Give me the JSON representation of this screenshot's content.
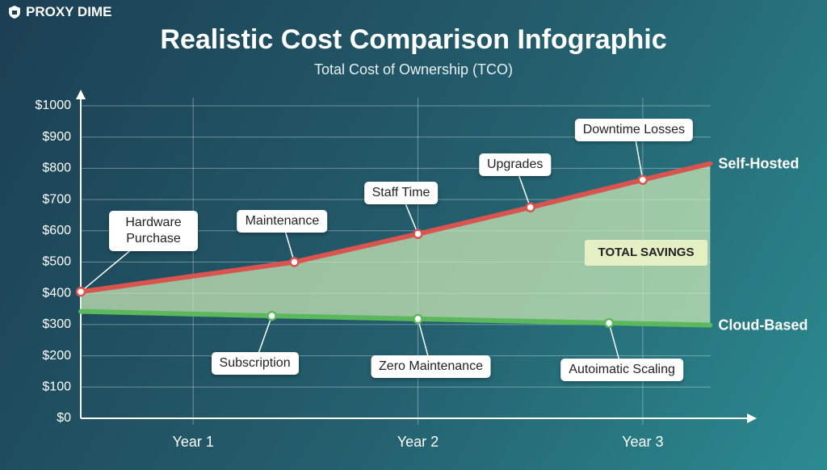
{
  "brand": "PROXY DIME",
  "chart_data": {
    "type": "line",
    "title": "Realistic Cost Comparison Infographic",
    "subtitle": "Total Cost of Ownership (TCO)",
    "annotation": "TOTAL SAVINGS",
    "xlim": [
      0.5,
      3.5
    ],
    "xticks": [
      {
        "value": 1,
        "label": "Year 1"
      },
      {
        "value": 2,
        "label": "Year 2"
      },
      {
        "value": 3,
        "label": "Year 3"
      }
    ],
    "ylim": [
      0,
      1000
    ],
    "yticks": [
      {
        "value": 0,
        "label": "$0"
      },
      {
        "value": 100,
        "label": "$100"
      },
      {
        "value": 200,
        "label": "$200"
      },
      {
        "value": 300,
        "label": "$300"
      },
      {
        "value": 400,
        "label": "$400"
      },
      {
        "value": 500,
        "label": "$500"
      },
      {
        "value": 600,
        "label": "$600"
      },
      {
        "value": 700,
        "label": "$700"
      },
      {
        "value": 800,
        "label": "$800"
      },
      {
        "value": 900,
        "label": "$900"
      },
      {
        "value": 1000,
        "label": "$1000"
      }
    ],
    "grid": true,
    "series": [
      {
        "name": "Self-Hosted",
        "color": "#d9534f",
        "x": [
          0.5,
          1.45,
          2.0,
          2.5,
          3.0,
          3.3
        ],
        "values": [
          405,
          500,
          590,
          675,
          763,
          815
        ],
        "point_labels": [
          "Hardware Purchase",
          "Maintenance",
          "Staff Time",
          "Upgrades",
          "Downtime Losses",
          null
        ]
      },
      {
        "name": "Cloud-Based",
        "color": "#5cb85c",
        "x": [
          0.5,
          1.35,
          2.0,
          2.85,
          3.3
        ],
        "values": [
          342,
          328,
          318,
          305,
          298
        ],
        "point_labels": [
          null,
          "Subscription",
          "Zero Maintenance",
          "Autoimatic Scaling",
          null
        ]
      }
    ]
  }
}
